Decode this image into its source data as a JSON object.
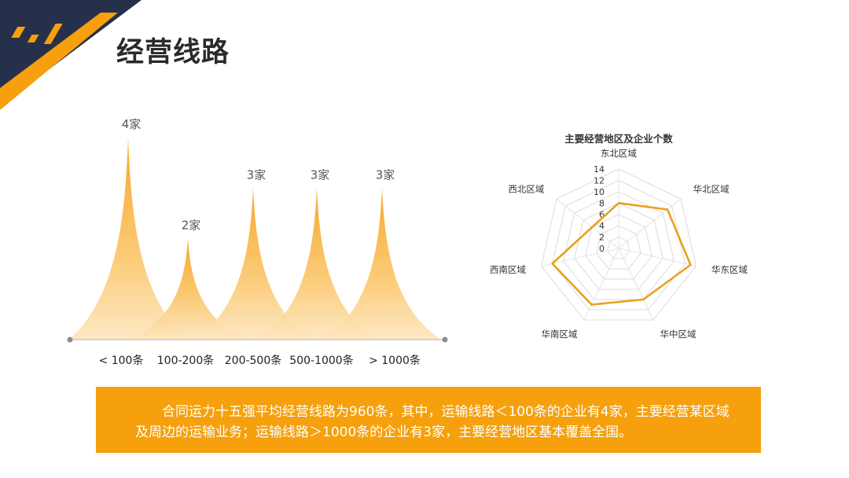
{
  "slide": {
    "title": "经营线路",
    "description": "合同运力十五强平均经营线路为960条，其中，运输线路＜100条的企业有4家，主要经营某区域及周边的运输业务；运输线路＞1000条的企业有3家，主要经营地区基本覆盖全国。"
  },
  "colors": {
    "accent": "#f5a00c",
    "navy": "#2a3447",
    "radar_line": "#e8a21a"
  },
  "chart_data": [
    {
      "type": "bar",
      "title": "",
      "categories": [
        "< 100条",
        "100-200条",
        "200-500条",
        "500-1000条",
        "> 1000条"
      ],
      "values": [
        4,
        2,
        3,
        3,
        3
      ],
      "data_labels": [
        "4家",
        "2家",
        "3家",
        "3家",
        "3家"
      ],
      "ylim": [
        0,
        4
      ],
      "grid": false,
      "legend": "none"
    },
    {
      "type": "radar",
      "title": "主要经营地区及企业个数",
      "categories": [
        "东北区域",
        "华北区域",
        "华东区域",
        "华中区域",
        "华南区域",
        "西南区域",
        "西北区域"
      ],
      "values": [
        8,
        11,
        13,
        10,
        11,
        12,
        6
      ],
      "ylim": [
        0,
        14
      ],
      "ticks": [
        "0",
        "2",
        "4",
        "6",
        "8",
        "10",
        "12",
        "14"
      ],
      "grid": true,
      "legend": "none"
    }
  ]
}
